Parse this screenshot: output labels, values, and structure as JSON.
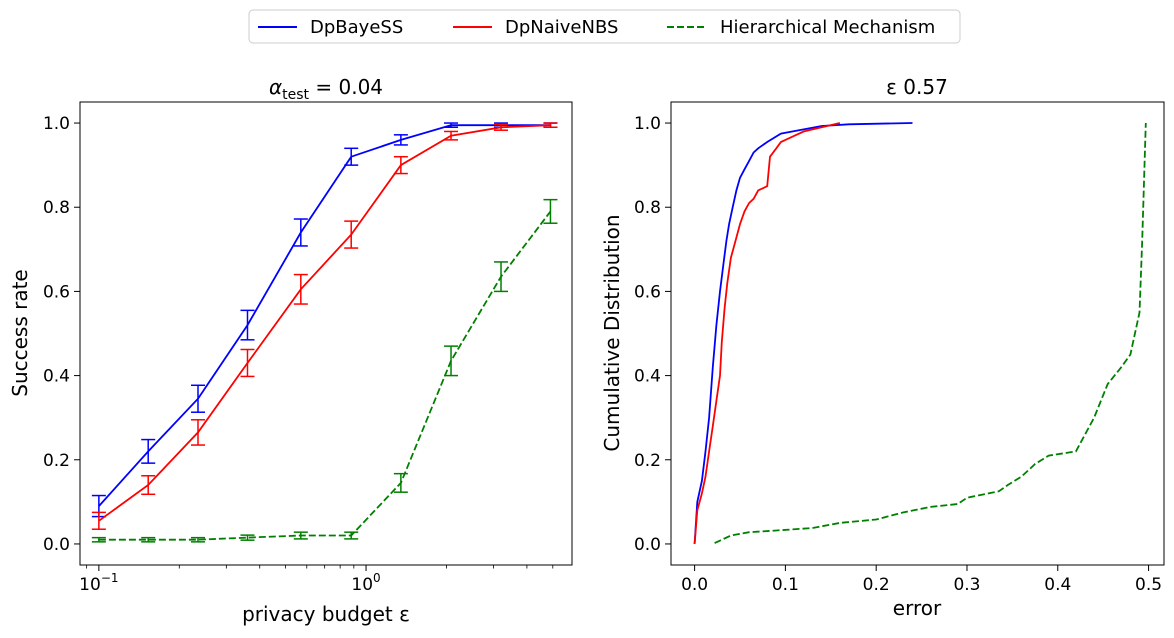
{
  "legend": {
    "entries": [
      {
        "label": "DpBayeSS",
        "color": "#0000ff",
        "dash": "solid"
      },
      {
        "label": "DpNaiveNBS",
        "color": "#ff0000",
        "dash": "solid"
      },
      {
        "label": "Hierarchical Mechanism",
        "color": "#008000",
        "dash": "dashed"
      }
    ],
    "placement": "top-center"
  },
  "chart_data": [
    {
      "type": "line",
      "title_prefix": "α",
      "title_sub": "test",
      "title_suffix": " = 0.04",
      "xlabel": "privacy budget ε",
      "ylabel": "Success rate",
      "xscale": "log",
      "xlim": [
        0.085,
        5.9
      ],
      "ylim": [
        -0.05,
        1.05
      ],
      "xticks": [
        {
          "value": 0.1,
          "base": "10",
          "exp": "−1"
        },
        {
          "value": 1,
          "base": "10",
          "exp": "0"
        }
      ],
      "yticks": [
        "0.0",
        "0.2",
        "0.4",
        "0.6",
        "0.8",
        "1.0"
      ],
      "x": [
        0.1,
        0.153,
        0.235,
        0.36,
        0.57,
        0.88,
        1.35,
        2.08,
        3.2,
        4.9
      ],
      "series": [
        {
          "name": "DpBayeSS",
          "color": "#0000ff",
          "dash": "solid",
          "values": [
            0.09,
            0.22,
            0.345,
            0.52,
            0.74,
            0.92,
            0.96,
            0.995,
            0.995,
            0.995
          ],
          "errors": [
            0.025,
            0.028,
            0.032,
            0.035,
            0.032,
            0.02,
            0.012,
            0.005,
            0.005,
            0.005
          ]
        },
        {
          "name": "DpNaiveNBS",
          "color": "#ff0000",
          "dash": "solid",
          "values": [
            0.055,
            0.14,
            0.265,
            0.43,
            0.605,
            0.735,
            0.9,
            0.97,
            0.99,
            0.995
          ],
          "errors": [
            0.02,
            0.022,
            0.03,
            0.032,
            0.035,
            0.032,
            0.02,
            0.01,
            0.007,
            0.005
          ]
        },
        {
          "name": "Hierarchical Mechanism",
          "color": "#008000",
          "dash": "dashed",
          "values": [
            0.01,
            0.01,
            0.01,
            0.015,
            0.02,
            0.02,
            0.145,
            0.435,
            0.635,
            0.79
          ],
          "errors": [
            0.005,
            0.005,
            0.005,
            0.006,
            0.008,
            0.008,
            0.022,
            0.035,
            0.035,
            0.028
          ]
        }
      ],
      "grid": false
    },
    {
      "type": "line",
      "title": "ε 0.57",
      "xlabel": "error",
      "ylabel": "Cumulative Distribution",
      "xlim": [
        -0.026,
        0.517
      ],
      "ylim": [
        -0.05,
        1.05
      ],
      "xticks": [
        "0.0",
        "0.1",
        "0.2",
        "0.3",
        "0.4",
        "0.5"
      ],
      "yticks": [
        "0.0",
        "0.2",
        "0.4",
        "0.6",
        "0.8",
        "1.0"
      ],
      "series": [
        {
          "name": "DpBayeSS",
          "color": "#0000ff",
          "dash": "solid",
          "x": [
            0,
            0.003,
            0.008,
            0.012,
            0.016,
            0.02,
            0.024,
            0.028,
            0.032,
            0.035,
            0.038,
            0.042,
            0.046,
            0.05,
            0.055,
            0.06,
            0.065,
            0.07,
            0.08,
            0.095,
            0.12,
            0.14,
            0.17,
            0.24
          ],
          "y": [
            0,
            0.1,
            0.15,
            0.22,
            0.3,
            0.42,
            0.52,
            0.6,
            0.67,
            0.72,
            0.76,
            0.8,
            0.84,
            0.87,
            0.89,
            0.91,
            0.93,
            0.94,
            0.955,
            0.975,
            0.985,
            0.993,
            0.997,
            1.0
          ]
        },
        {
          "name": "DpNaiveNBS",
          "color": "#ff0000",
          "dash": "solid",
          "x": [
            0,
            0.003,
            0.008,
            0.012,
            0.016,
            0.02,
            0.024,
            0.028,
            0.03,
            0.033,
            0.036,
            0.04,
            0.045,
            0.05,
            0.055,
            0.06,
            0.065,
            0.07,
            0.075,
            0.08,
            0.083,
            0.09,
            0.095,
            0.1,
            0.11,
            0.12,
            0.13,
            0.14,
            0.16
          ],
          "y": [
            0,
            0.08,
            0.12,
            0.16,
            0.22,
            0.28,
            0.34,
            0.4,
            0.48,
            0.56,
            0.62,
            0.68,
            0.72,
            0.76,
            0.79,
            0.81,
            0.82,
            0.84,
            0.845,
            0.85,
            0.92,
            0.94,
            0.955,
            0.96,
            0.97,
            0.98,
            0.985,
            0.99,
            1.0
          ]
        },
        {
          "name": "Hierarchical Mechanism",
          "color": "#008000",
          "dash": "dashed",
          "x": [
            0.022,
            0.04,
            0.06,
            0.09,
            0.13,
            0.16,
            0.2,
            0.23,
            0.26,
            0.29,
            0.3,
            0.335,
            0.345,
            0.36,
            0.375,
            0.39,
            0.42,
            0.44,
            0.455,
            0.47,
            0.48,
            0.49,
            0.493,
            0.497
          ],
          "y": [
            0.002,
            0.02,
            0.028,
            0.032,
            0.038,
            0.05,
            0.058,
            0.075,
            0.088,
            0.095,
            0.11,
            0.125,
            0.14,
            0.16,
            0.19,
            0.21,
            0.22,
            0.3,
            0.38,
            0.42,
            0.45,
            0.55,
            0.72,
            1.0
          ]
        }
      ],
      "grid": false
    }
  ]
}
